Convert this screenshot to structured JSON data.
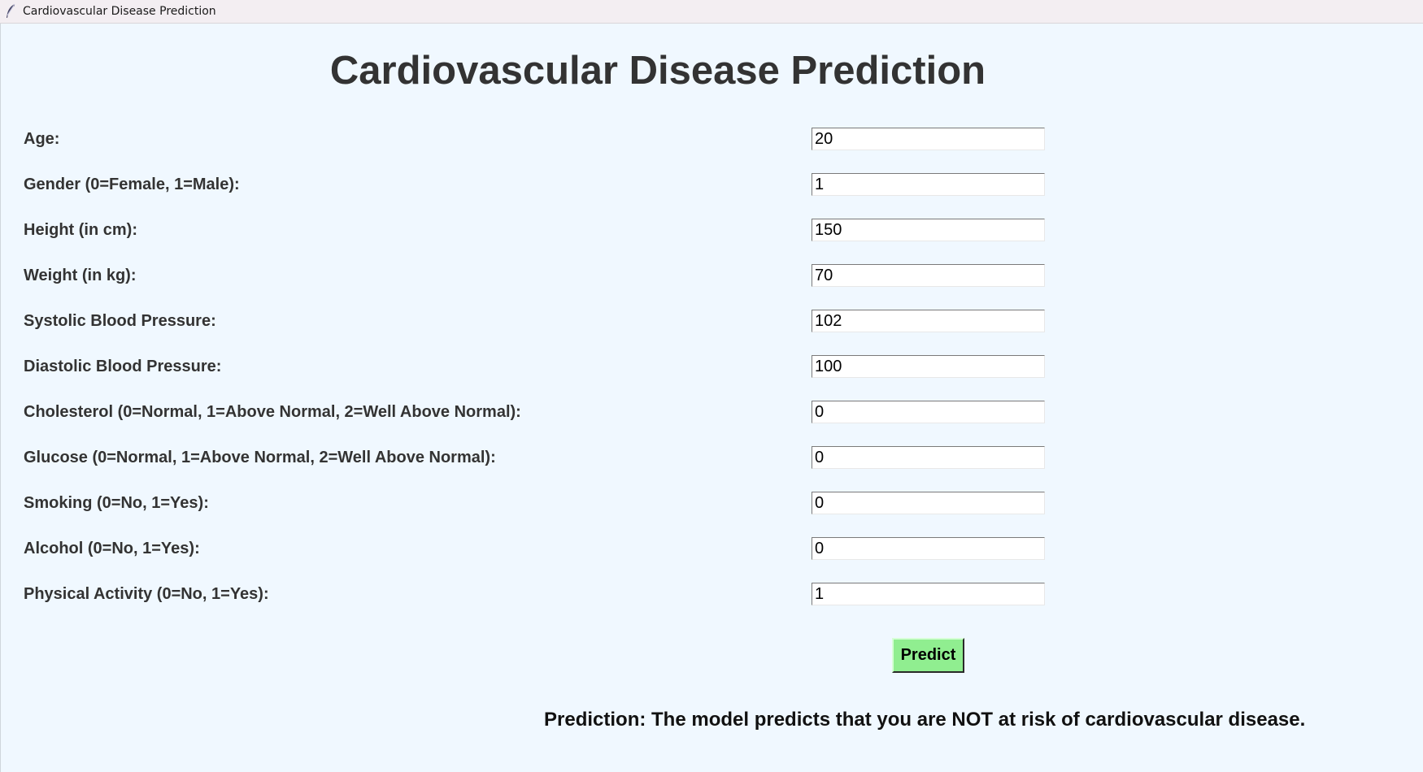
{
  "window": {
    "title": "Cardiovascular Disease Prediction",
    "icon": "feather-icon"
  },
  "heading": "Cardiovascular Disease Prediction",
  "fields": [
    {
      "label": "Age:",
      "value": "20"
    },
    {
      "label": "Gender (0=Female, 1=Male):",
      "value": "1"
    },
    {
      "label": "Height (in cm):",
      "value": "150"
    },
    {
      "label": "Weight (in kg):",
      "value": "70"
    },
    {
      "label": "Systolic Blood Pressure:",
      "value": "102"
    },
    {
      "label": "Diastolic Blood Pressure:",
      "value": "100"
    },
    {
      "label": "Cholesterol (0=Normal, 1=Above Normal, 2=Well Above Normal):",
      "value": "0"
    },
    {
      "label": "Glucose (0=Normal, 1=Above Normal, 2=Well Above Normal):",
      "value": "0"
    },
    {
      "label": "Smoking (0=No, 1=Yes):",
      "value": "0"
    },
    {
      "label": "Alcohol (0=No, 1=Yes):",
      "value": "0"
    },
    {
      "label": "Physical Activity (0=No, 1=Yes):",
      "value": "1"
    }
  ],
  "predict_button": {
    "label": "Predict",
    "color": "#90ee90"
  },
  "result": "Prediction: The model predicts that you are NOT at risk of cardiovascular disease.",
  "colors": {
    "background": "#f0f8ff",
    "text": "#333333"
  }
}
